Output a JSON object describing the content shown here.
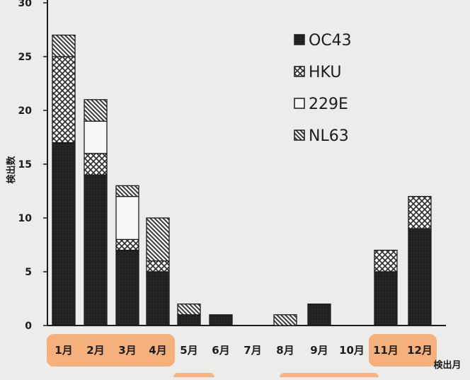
{
  "chart_data": {
    "type": "bar",
    "stacked": true,
    "ylabel": "検出数",
    "xlabel": "検出月",
    "ylim": [
      0,
      30
    ],
    "yticks": [
      0,
      5,
      10,
      15,
      20,
      25,
      30
    ],
    "ytick_labels": [
      "0",
      "5",
      "10",
      "15",
      "20",
      "25",
      "30"
    ],
    "categories": [
      "1月",
      "2月",
      "3月",
      "4月",
      "5月",
      "6月",
      "7月",
      "8月",
      "9月",
      "10月",
      "11月",
      "12月"
    ],
    "highlighted_categories": [
      "1月",
      "2月",
      "3月",
      "4月",
      "11月",
      "12月"
    ],
    "highlight_color": "#f7a66a",
    "legend_position": "top-right",
    "grid": false,
    "series": [
      {
        "name": "OC43",
        "pattern": "solid-dark",
        "values": [
          17,
          14,
          7,
          5,
          1,
          1,
          0,
          0,
          2,
          0,
          5,
          9
        ]
      },
      {
        "name": "HKU",
        "pattern": "crosshatch",
        "values": [
          8,
          2,
          1,
          1,
          0,
          0,
          0,
          0,
          0,
          0,
          2,
          3
        ]
      },
      {
        "name": "229E",
        "pattern": "empty",
        "values": [
          0,
          3,
          4,
          0,
          0,
          0,
          0,
          0,
          0,
          0,
          0,
          0
        ]
      },
      {
        "name": "NL63",
        "pattern": "diagonal",
        "values": [
          2,
          2,
          1,
          4,
          1,
          0,
          0,
          1,
          0,
          0,
          0,
          0
        ]
      }
    ]
  }
}
